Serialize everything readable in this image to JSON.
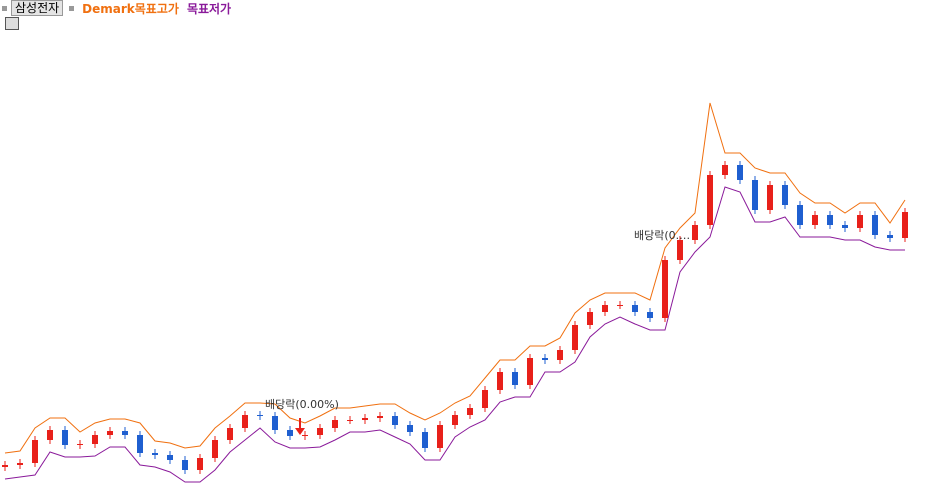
{
  "chart_data": {
    "type": "candlestick",
    "name": "삼성전자",
    "up_color": "#e8201a",
    "down_color": "#1f5fd0",
    "ylim": [
      0,
      503
    ],
    "open": [
      36,
      38,
      40,
      63,
      73,
      58,
      59,
      68,
      72,
      68,
      50,
      48,
      43,
      33,
      45,
      63,
      75,
      88,
      87,
      73,
      67,
      68,
      75,
      83,
      83,
      85,
      87,
      78,
      71,
      55,
      78,
      88,
      95,
      113,
      131,
      118,
      145,
      143,
      153,
      178,
      191,
      198,
      198,
      191,
      185,
      243,
      263,
      278,
      328,
      338,
      323,
      293,
      318,
      298,
      278,
      288,
      278,
      275,
      288,
      268,
      265
    ],
    "high": [
      42,
      44,
      67,
      77,
      77,
      63,
      72,
      76,
      76,
      72,
      54,
      52,
      47,
      49,
      67,
      79,
      92,
      92,
      91,
      77,
      72,
      79,
      87,
      87,
      89,
      91,
      91,
      82,
      75,
      82,
      92,
      99,
      117,
      135,
      135,
      149,
      149,
      157,
      182,
      195,
      202,
      202,
      202,
      195,
      247,
      267,
      282,
      332,
      342,
      342,
      327,
      322,
      322,
      302,
      292,
      292,
      282,
      292,
      292,
      272,
      295
    ],
    "low": [
      32,
      34,
      36,
      59,
      54,
      54,
      55,
      64,
      64,
      46,
      44,
      39,
      29,
      29,
      41,
      59,
      71,
      83,
      69,
      63,
      63,
      64,
      71,
      79,
      79,
      81,
      74,
      67,
      51,
      51,
      74,
      84,
      91,
      109,
      114,
      114,
      139,
      139,
      149,
      174,
      187,
      194,
      187,
      181,
      181,
      239,
      259,
      274,
      324,
      319,
      289,
      289,
      294,
      274,
      274,
      274,
      271,
      271,
      264,
      261,
      261
    ],
    "close": [
      38,
      40,
      63,
      73,
      58,
      59,
      68,
      72,
      68,
      50,
      48,
      43,
      33,
      45,
      63,
      75,
      88,
      87,
      73,
      67,
      68,
      75,
      83,
      83,
      85,
      87,
      78,
      71,
      55,
      78,
      88,
      95,
      113,
      131,
      118,
      145,
      143,
      153,
      178,
      191,
      198,
      198,
      191,
      185,
      243,
      263,
      278,
      328,
      338,
      323,
      293,
      318,
      298,
      278,
      288,
      278,
      275,
      288,
      268,
      265,
      291
    ],
    "series": [
      {
        "name": "Demark목표고가",
        "color": "#f07010",
        "values": [
          50,
          52,
          75,
          85,
          85,
          71,
          80,
          84,
          84,
          80,
          62,
          60,
          55,
          57,
          75,
          87,
          100,
          100,
          99,
          85,
          80,
          87,
          95,
          95,
          97,
          99,
          99,
          90,
          83,
          90,
          100,
          107,
          125,
          143,
          143,
          157,
          157,
          165,
          190,
          203,
          210,
          210,
          210,
          203,
          255,
          275,
          290,
          400,
          350,
          350,
          335,
          330,
          330,
          310,
          300,
          300,
          290,
          300,
          300,
          280,
          303
        ]
      },
      {
        "name": "목표저가",
        "color": "#8a1a9a",
        "values": [
          24,
          26,
          28,
          51,
          46,
          46,
          47,
          56,
          56,
          38,
          36,
          31,
          21,
          21,
          33,
          51,
          63,
          75,
          61,
          55,
          55,
          56,
          63,
          71,
          71,
          73,
          66,
          59,
          43,
          43,
          66,
          76,
          83,
          101,
          106,
          106,
          131,
          131,
          141,
          166,
          179,
          186,
          179,
          173,
          173,
          231,
          251,
          266,
          316,
          311,
          281,
          281,
          286,
          266,
          266,
          266,
          263,
          263,
          256,
          253,
          253
        ]
      }
    ],
    "annotations": [
      "배당락(0.00%)",
      "배당락(0.…"
    ]
  }
}
